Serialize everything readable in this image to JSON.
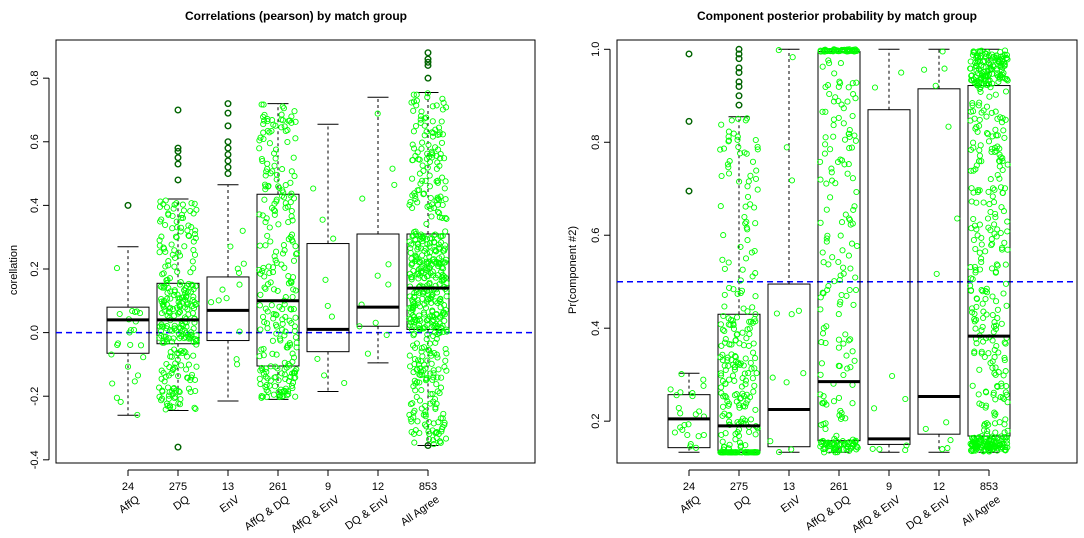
{
  "chart_data": [
    {
      "type": "boxplot",
      "title": "Correlations (pearson) by match group",
      "ylabel": "corellation",
      "xlabel": "",
      "ylim": [
        -0.41,
        0.92
      ],
      "yticks": [
        -0.4,
        -0.2,
        0.0,
        0.2,
        0.4,
        0.6,
        0.8
      ],
      "reference_line": {
        "y": 0.0,
        "style": "dashed",
        "color": "#0000ff"
      },
      "point_color": "#00ff00",
      "outlier_color": "#006400",
      "groups": [
        {
          "label": "AffQ",
          "count": "24",
          "min": -0.26,
          "q1": -0.065,
          "median": 0.04,
          "q3": 0.08,
          "max": 0.27,
          "outliers": [
            0.4
          ]
        },
        {
          "label": "DQ",
          "count": "275",
          "min": -0.245,
          "q1": -0.035,
          "median": 0.04,
          "q3": 0.155,
          "max": 0.42,
          "outliers": [
            0.48,
            0.53,
            0.55,
            0.57,
            0.58,
            0.7,
            -0.36
          ]
        },
        {
          "label": "EnV",
          "count": "13",
          "min": -0.215,
          "q1": -0.025,
          "median": 0.07,
          "q3": 0.175,
          "max": 0.465,
          "outliers": [
            0.5,
            0.52,
            0.54,
            0.56,
            0.58,
            0.6,
            0.65,
            0.69,
            0.72
          ]
        },
        {
          "label": "AffQ & DQ",
          "count": "261",
          "min": -0.21,
          "q1": -0.105,
          "median": 0.1,
          "q3": 0.435,
          "max": 0.72,
          "outliers": []
        },
        {
          "label": "AffQ & EnV",
          "count": "9",
          "min": -0.185,
          "q1": -0.06,
          "median": 0.01,
          "q3": 0.28,
          "max": 0.655,
          "outliers": []
        },
        {
          "label": "DQ & EnV",
          "count": "12",
          "min": -0.095,
          "q1": 0.02,
          "median": 0.08,
          "q3": 0.31,
          "max": 0.74,
          "outliers": []
        },
        {
          "label": "All Agree",
          "count": "853",
          "min": -0.355,
          "q1": 0.01,
          "median": 0.14,
          "q3": 0.31,
          "max": 0.755,
          "outliers": [
            0.8,
            0.84,
            0.85,
            0.86,
            0.88,
            -0.355
          ]
        }
      ]
    },
    {
      "type": "boxplot",
      "title": "Component posterior probability by match group",
      "ylabel": "Pr(component #2)",
      "xlabel": "",
      "ylim": [
        0.11,
        1.02
      ],
      "yticks": [
        0.2,
        0.4,
        0.6,
        0.8,
        1.0
      ],
      "reference_line": {
        "y": 0.5,
        "style": "dashed",
        "color": "#0000ff"
      },
      "point_color": "#00ff00",
      "outlier_color": "#006400",
      "groups": [
        {
          "label": "AffQ",
          "count": "24",
          "min": 0.133,
          "q1": 0.143,
          "median": 0.205,
          "q3": 0.257,
          "max": 0.303,
          "outliers": [
            0.695,
            0.845,
            0.99
          ]
        },
        {
          "label": "DQ",
          "count": "275",
          "min": 0.133,
          "q1": 0.133,
          "median": 0.19,
          "q3": 0.43,
          "max": 0.855,
          "outliers": [
            0.88,
            0.9,
            0.92,
            0.93,
            0.95,
            0.96,
            0.98,
            0.99,
            1.0
          ]
        },
        {
          "label": "EnV",
          "count": "13",
          "min": 0.133,
          "q1": 0.145,
          "median": 0.225,
          "q3": 0.495,
          "max": 1.0,
          "outliers": []
        },
        {
          "label": "AffQ & DQ",
          "count": "261",
          "min": 0.133,
          "q1": 0.158,
          "median": 0.285,
          "q3": 0.995,
          "max": 1.0,
          "outliers": []
        },
        {
          "label": "AffQ & EnV",
          "count": "9",
          "min": 0.133,
          "q1": 0.15,
          "median": 0.162,
          "q3": 0.87,
          "max": 1.0,
          "outliers": []
        },
        {
          "label": "DQ & EnV",
          "count": "12",
          "min": 0.133,
          "q1": 0.172,
          "median": 0.253,
          "q3": 0.915,
          "max": 1.0,
          "outliers": []
        },
        {
          "label": "All Agree",
          "count": "853",
          "min": 0.133,
          "q1": 0.168,
          "median": 0.383,
          "q3": 0.922,
          "max": 1.0,
          "outliers": []
        }
      ]
    }
  ]
}
